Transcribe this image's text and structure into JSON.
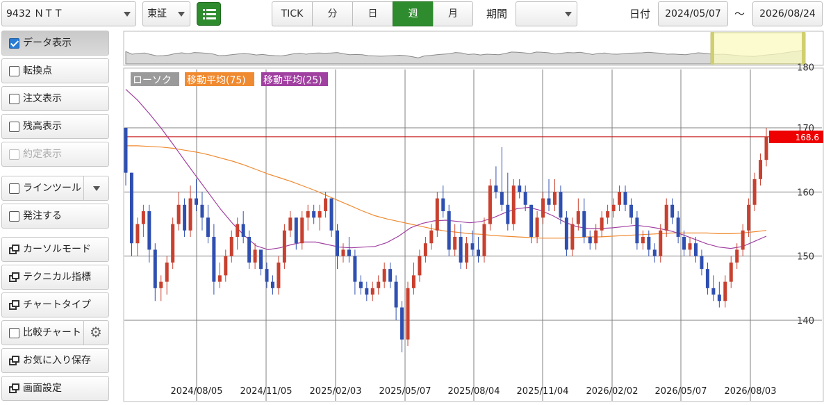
{
  "topbar": {
    "symbol": "9432 ＮＴＴ",
    "market": "東証",
    "periods": [
      "TICK",
      "分",
      "日",
      "週",
      "月"
    ],
    "active_period": "週",
    "range_label": "期間",
    "range_value": "",
    "date_label": "日付",
    "date_from": "2024/05/07",
    "date_sep": "～",
    "date_to": "2026/08/24"
  },
  "sidebar": {
    "data_display": "データ表示",
    "turning_point": "転換点",
    "order_display": "注文表示",
    "balance_display": "残高表示",
    "executed_display": "約定表示",
    "line_tool": "ラインツール",
    "place_order": "発注する",
    "cursor_mode": "カーソルモード",
    "technical": "テクニカル指標",
    "chart_type": "チャートタイプ",
    "compare_chart": "比較チャート",
    "save_favorite": "お気に入り保存",
    "screen_settings": "画面設定"
  },
  "colors": {
    "accent_green": "#2e8b2e",
    "candle_up": "#c8402f",
    "candle_down": "#2f4fb0",
    "ma75": "#f08a30",
    "ma25": "#a040a0",
    "price_line": "#c00000"
  },
  "icons": [
    "list-icon",
    "checkbox-icon",
    "window-icon",
    "gear-icon",
    "chevron-down-icon"
  ],
  "chart_data": {
    "type": "candlestick",
    "legend": [
      "ローソク",
      "移動平均(75)",
      "移動平均(25)"
    ],
    "y_ticks": [
      140,
      150,
      160,
      170,
      180
    ],
    "ylim": [
      130,
      180
    ],
    "x_ticks": [
      "2024/08/05",
      "2024/11/05",
      "2025/02/03",
      "2025/05/07",
      "2025/08/04",
      "2025/11/04",
      "2026/02/02",
      "2026/05/07",
      "2026/08/03"
    ],
    "current_price": "168.6",
    "ohlc": [
      [
        170,
        170,
        161,
        163
      ],
      [
        163,
        163,
        150,
        152
      ],
      [
        152,
        156,
        150,
        155
      ],
      [
        155,
        158,
        153,
        157
      ],
      [
        157,
        158,
        149,
        151
      ],
      [
        151,
        152,
        143,
        145
      ],
      [
        145,
        147,
        143,
        146
      ],
      [
        146,
        150,
        144,
        149
      ],
      [
        149,
        156,
        148,
        155
      ],
      [
        155,
        160,
        154,
        158
      ],
      [
        158,
        159,
        153,
        154
      ],
      [
        154,
        161,
        153,
        159
      ],
      [
        159,
        162,
        157,
        158
      ],
      [
        158,
        160,
        154,
        156
      ],
      [
        156,
        158,
        152,
        153
      ],
      [
        153,
        155,
        144,
        146
      ],
      [
        146,
        149,
        145,
        147
      ],
      [
        147,
        151,
        146,
        150
      ],
      [
        150,
        154,
        149,
        153
      ],
      [
        153,
        156,
        151,
        155
      ],
      [
        155,
        157,
        152,
        153
      ],
      [
        153,
        154,
        148,
        149
      ],
      [
        149,
        152,
        148,
        151
      ],
      [
        151,
        151,
        147,
        148
      ],
      [
        148,
        149,
        145,
        146
      ],
      [
        146,
        147,
        144,
        145
      ],
      [
        145,
        150,
        144,
        149
      ],
      [
        149,
        155,
        148,
        154
      ],
      [
        154,
        157,
        153,
        156
      ],
      [
        156,
        156,
        151,
        152
      ],
      [
        152,
        157,
        151,
        156
      ],
      [
        156,
        158,
        154,
        157
      ],
      [
        157,
        158,
        155,
        156
      ],
      [
        156,
        158,
        154,
        157
      ],
      [
        157,
        160,
        156,
        159
      ],
      [
        159,
        159,
        153,
        154
      ],
      [
        154,
        155,
        148,
        150
      ],
      [
        150,
        152,
        149,
        151
      ],
      [
        151,
        153,
        149,
        150
      ],
      [
        150,
        151,
        144,
        146
      ],
      [
        146,
        147,
        144,
        145
      ],
      [
        145,
        146,
        143,
        144
      ],
      [
        144,
        146,
        143,
        145
      ],
      [
        145,
        147,
        144,
        146
      ],
      [
        146,
        149,
        145,
        148
      ],
      [
        148,
        149,
        145,
        146
      ],
      [
        146,
        147,
        140,
        142
      ],
      [
        142,
        143,
        135,
        137
      ],
      [
        137,
        146,
        136,
        145
      ],
      [
        145,
        149,
        144,
        147
      ],
      [
        147,
        151,
        146,
        150
      ],
      [
        150,
        153,
        149,
        152
      ],
      [
        152,
        155,
        151,
        154
      ],
      [
        154,
        160,
        153,
        159
      ],
      [
        159,
        161,
        156,
        157
      ],
      [
        157,
        158,
        150,
        151
      ],
      [
        151,
        155,
        150,
        153
      ],
      [
        153,
        155,
        148,
        149
      ],
      [
        149,
        153,
        148,
        152
      ],
      [
        152,
        154,
        150,
        151
      ],
      [
        151,
        153,
        149,
        150
      ],
      [
        150,
        156,
        149,
        155
      ],
      [
        155,
        162,
        154,
        161
      ],
      [
        161,
        164,
        159,
        160
      ],
      [
        160,
        167,
        157,
        158
      ],
      [
        158,
        163,
        154,
        155
      ],
      [
        155,
        162,
        154,
        161
      ],
      [
        161,
        162,
        159,
        160
      ],
      [
        160,
        161,
        157,
        158
      ],
      [
        158,
        158,
        152,
        153
      ],
      [
        153,
        157,
        152,
        156
      ],
      [
        156,
        160,
        155,
        159
      ],
      [
        159,
        162,
        157,
        158
      ],
      [
        158,
        162,
        157,
        160
      ],
      [
        160,
        161,
        155,
        156
      ],
      [
        156,
        157,
        150,
        151
      ],
      [
        151,
        156,
        150,
        155
      ],
      [
        155,
        159,
        154,
        157
      ],
      [
        157,
        159,
        152,
        153
      ],
      [
        153,
        154,
        151,
        152
      ],
      [
        152,
        155,
        151,
        154
      ],
      [
        154,
        157,
        153,
        156
      ],
      [
        156,
        158,
        155,
        157
      ],
      [
        157,
        159,
        156,
        158
      ],
      [
        158,
        161,
        157,
        160
      ],
      [
        160,
        161,
        157,
        158
      ],
      [
        158,
        159,
        155,
        156
      ],
      [
        156,
        157,
        151,
        152
      ],
      [
        152,
        154,
        151,
        153
      ],
      [
        153,
        154,
        150,
        151
      ],
      [
        151,
        152,
        149,
        150
      ],
      [
        150,
        155,
        149,
        154
      ],
      [
        154,
        159,
        153,
        158
      ],
      [
        158,
        159,
        155,
        156
      ],
      [
        156,
        157,
        152,
        153
      ],
      [
        153,
        154,
        150,
        151
      ],
      [
        151,
        153,
        150,
        152
      ],
      [
        152,
        153,
        149,
        150
      ],
      [
        150,
        151,
        147,
        148
      ],
      [
        148,
        149,
        144,
        145
      ],
      [
        145,
        147,
        143,
        144
      ],
      [
        144,
        146,
        142,
        143
      ],
      [
        143,
        147,
        142,
        146
      ],
      [
        146,
        150,
        145,
        149
      ],
      [
        149,
        152,
        148,
        151
      ],
      [
        151,
        155,
        150,
        154
      ],
      [
        154,
        159,
        153,
        158
      ],
      [
        158,
        163,
        157,
        162
      ],
      [
        162,
        166,
        161,
        165
      ],
      [
        165,
        170,
        164,
        168.6
      ]
    ],
    "ma75": [
      167.2,
      167.2,
      167.1,
      167,
      166.8,
      166.5,
      166.2,
      165.8,
      165.3,
      164.8,
      164.2,
      163.5,
      162.8,
      162.2,
      161.6,
      160.9,
      160.2,
      159.4,
      158.6,
      157.8,
      157,
      156.3,
      155.8,
      155.4,
      155,
      154.6,
      154.2,
      153.9,
      153.7,
      153.5,
      153.4,
      153.2,
      153.1,
      153,
      152.9,
      152.8,
      152.8,
      152.8,
      152.9,
      153,
      153,
      153.1,
      153.2,
      153.3,
      153.4,
      153.5,
      153.6,
      153.6,
      153.6,
      153.6,
      153.5,
      153.5,
      153.6,
      153.8,
      154
    ],
    "ma25": [
      176,
      174.3,
      172.2,
      169.9,
      167.4,
      164.8,
      162.3,
      159.8,
      157.3,
      155.1,
      153.2,
      151.6,
      151,
      151.3,
      151.8,
      152.2,
      152.2,
      151.8,
      151.4,
      151.3,
      151.4,
      151.5,
      152.1,
      153.1,
      154.4,
      155.1,
      155.5,
      155.6,
      155.4,
      155.2,
      155.4,
      156,
      156.8,
      157.4,
      157.6,
      157.1,
      156.3,
      155.3,
      154.6,
      154.3,
      154.3,
      154.4,
      154.6,
      154.8,
      154.6,
      154.3,
      153.9,
      153.3,
      152.6,
      151.9,
      151.4,
      151.2,
      151.5,
      152.3,
      153.1
    ]
  }
}
